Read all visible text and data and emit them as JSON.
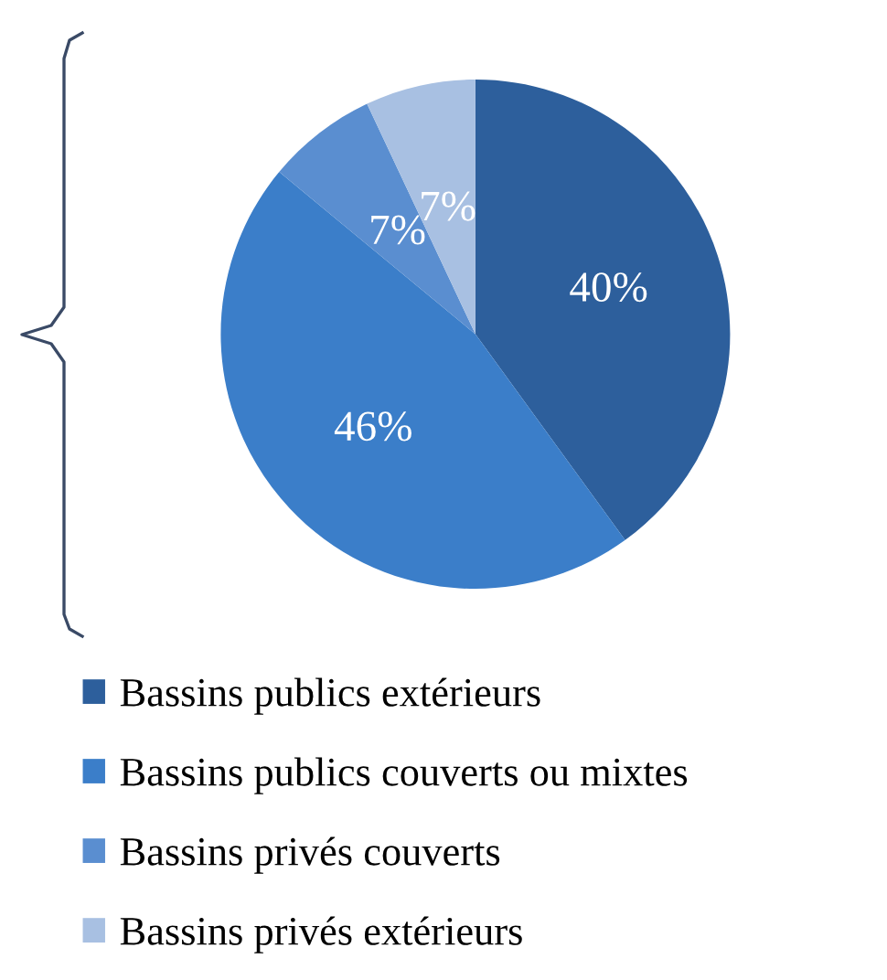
{
  "chart_data": {
    "type": "pie",
    "categories": [
      "Bassins publics extérieurs",
      "Bassins publics couverts ou mixtes",
      "Bassins privés couverts",
      "Bassins privés extérieurs"
    ],
    "values": [
      40,
      46,
      7,
      7
    ],
    "colors": [
      "#2d5f9c",
      "#3b7ec9",
      "#5a8ed0",
      "#a8c0e2"
    ],
    "value_labels": [
      "40%",
      "46%",
      "7%",
      "7%"
    ],
    "legend": "bottom"
  }
}
